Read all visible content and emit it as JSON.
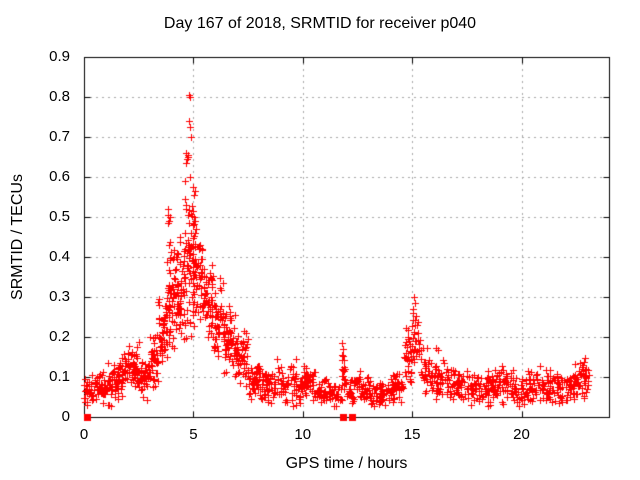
{
  "chart_data": {
    "type": "scatter",
    "title": "Day 167 of 2018, SRMTID for receiver p040",
    "xlabel": "GPS time / hours",
    "ylabel": "SRMTID / TECUs",
    "xlim": [
      0,
      24
    ],
    "ylim": [
      0,
      0.9
    ],
    "xticks": [
      {
        "value": 0,
        "label": "0"
      },
      {
        "value": 5,
        "label": "5"
      },
      {
        "value": 10,
        "label": "10"
      },
      {
        "value": 15,
        "label": "15"
      },
      {
        "value": 20,
        "label": "20"
      }
    ],
    "yticks": [
      {
        "value": 0.0,
        "label": "0"
      },
      {
        "value": 0.1,
        "label": "0.1"
      },
      {
        "value": 0.2,
        "label": "0.2"
      },
      {
        "value": 0.3,
        "label": "0.3"
      },
      {
        "value": 0.4,
        "label": "0.4"
      },
      {
        "value": 0.5,
        "label": "0.5"
      },
      {
        "value": 0.6,
        "label": "0.6"
      },
      {
        "value": 0.7,
        "label": "0.7"
      },
      {
        "value": 0.8,
        "label": "0.8"
      },
      {
        "value": 0.9,
        "label": "0.9"
      }
    ],
    "grid": true,
    "legend": "none",
    "marker": "plus",
    "marker_color": "#ff0000",
    "grid_color": "#a9a9a9",
    "axis_color": "#000000",
    "background_color": "#ffffff",
    "seed": 42,
    "density_bins": [
      {
        "x0": 0.0,
        "x1": 0.5,
        "ymin": 0.02,
        "ymax": 0.11,
        "n": 32
      },
      {
        "x0": 0.5,
        "x1": 1.0,
        "ymin": 0.03,
        "ymax": 0.12,
        "n": 36
      },
      {
        "x0": 1.0,
        "x1": 1.5,
        "ymin": 0.02,
        "ymax": 0.14,
        "n": 40
      },
      {
        "x0": 1.5,
        "x1": 2.0,
        "ymin": 0.04,
        "ymax": 0.17,
        "n": 40
      },
      {
        "x0": 2.0,
        "x1": 2.5,
        "ymin": 0.05,
        "ymax": 0.19,
        "n": 42
      },
      {
        "x0": 2.5,
        "x1": 3.0,
        "ymin": 0.04,
        "ymax": 0.16,
        "n": 40
      },
      {
        "x0": 3.0,
        "x1": 3.4,
        "ymin": 0.06,
        "ymax": 0.22,
        "n": 36
      },
      {
        "x0": 3.4,
        "x1": 3.8,
        "ymin": 0.1,
        "ymax": 0.33,
        "n": 46
      },
      {
        "x0": 3.8,
        "x1": 4.2,
        "ymin": 0.12,
        "ymax": 0.45,
        "n": 52
      },
      {
        "x0": 4.2,
        "x1": 4.6,
        "ymin": 0.15,
        "ymax": 0.47,
        "n": 52
      },
      {
        "x0": 4.6,
        "x1": 5.0,
        "ymin": 0.18,
        "ymax": 0.62,
        "n": 58
      },
      {
        "x0": 5.0,
        "x1": 5.4,
        "ymin": 0.2,
        "ymax": 0.52,
        "n": 52
      },
      {
        "x0": 5.4,
        "x1": 5.9,
        "ymin": 0.17,
        "ymax": 0.43,
        "n": 52
      },
      {
        "x0": 5.9,
        "x1": 6.4,
        "ymin": 0.13,
        "ymax": 0.36,
        "n": 48
      },
      {
        "x0": 6.4,
        "x1": 6.9,
        "ymin": 0.1,
        "ymax": 0.28,
        "n": 52
      },
      {
        "x0": 6.9,
        "x1": 7.5,
        "ymin": 0.07,
        "ymax": 0.22,
        "n": 52
      },
      {
        "x0": 7.5,
        "x1": 8.1,
        "ymin": 0.04,
        "ymax": 0.15,
        "n": 48
      },
      {
        "x0": 8.1,
        "x1": 9.0,
        "ymin": 0.02,
        "ymax": 0.13,
        "n": 52
      },
      {
        "x0": 9.0,
        "x1": 9.9,
        "ymin": 0.02,
        "ymax": 0.14,
        "n": 55
      },
      {
        "x0": 9.9,
        "x1": 10.6,
        "ymin": 0.04,
        "ymax": 0.13,
        "n": 45
      },
      {
        "x0": 10.6,
        "x1": 11.4,
        "ymin": 0.02,
        "ymax": 0.1,
        "n": 45
      },
      {
        "x0": 11.4,
        "x1": 11.8,
        "ymin": 0.02,
        "ymax": 0.09,
        "n": 22
      },
      {
        "x0": 11.75,
        "x1": 11.95,
        "ymin": 0.05,
        "ymax": 0.18,
        "n": 14
      },
      {
        "x0": 11.95,
        "x1": 12.4,
        "ymin": 0.03,
        "ymax": 0.11,
        "n": 24
      },
      {
        "x0": 12.4,
        "x1": 13.1,
        "ymin": 0.03,
        "ymax": 0.12,
        "n": 42
      },
      {
        "x0": 13.1,
        "x1": 13.9,
        "ymin": 0.02,
        "ymax": 0.09,
        "n": 45
      },
      {
        "x0": 13.9,
        "x1": 14.6,
        "ymin": 0.03,
        "ymax": 0.12,
        "n": 45
      },
      {
        "x0": 14.6,
        "x1": 15.0,
        "ymin": 0.05,
        "ymax": 0.24,
        "n": 30
      },
      {
        "x0": 15.0,
        "x1": 15.35,
        "ymin": 0.08,
        "ymax": 0.29,
        "n": 26
      },
      {
        "x0": 15.35,
        "x1": 15.9,
        "ymin": 0.05,
        "ymax": 0.18,
        "n": 34
      },
      {
        "x0": 15.9,
        "x1": 16.6,
        "ymin": 0.04,
        "ymax": 0.15,
        "n": 42
      },
      {
        "x0": 16.6,
        "x1": 17.6,
        "ymin": 0.03,
        "ymax": 0.13,
        "n": 56
      },
      {
        "x0": 17.6,
        "x1": 18.6,
        "ymin": 0.02,
        "ymax": 0.12,
        "n": 56
      },
      {
        "x0": 18.6,
        "x1": 19.6,
        "ymin": 0.03,
        "ymax": 0.13,
        "n": 56
      },
      {
        "x0": 19.6,
        "x1": 20.6,
        "ymin": 0.02,
        "ymax": 0.12,
        "n": 56
      },
      {
        "x0": 20.6,
        "x1": 21.6,
        "ymin": 0.03,
        "ymax": 0.13,
        "n": 56
      },
      {
        "x0": 21.6,
        "x1": 22.4,
        "ymin": 0.02,
        "ymax": 0.11,
        "n": 48
      },
      {
        "x0": 22.4,
        "x1": 23.1,
        "ymin": 0.04,
        "ymax": 0.15,
        "n": 48
      }
    ],
    "outlier_points": [
      [
        3.82,
        0.52
      ],
      [
        3.86,
        0.505
      ],
      [
        3.9,
        0.49
      ],
      [
        3.84,
        0.485
      ],
      [
        3.92,
        0.5
      ],
      [
        4.78,
        0.805
      ],
      [
        4.84,
        0.8
      ],
      [
        4.8,
        0.74
      ],
      [
        4.83,
        0.725
      ],
      [
        4.87,
        0.7
      ],
      [
        4.68,
        0.66
      ],
      [
        4.74,
        0.655
      ],
      [
        4.71,
        0.645
      ],
      [
        4.77,
        0.65
      ],
      [
        4.66,
        0.635
      ],
      [
        4.86,
        0.6
      ],
      [
        4.61,
        0.59
      ],
      [
        4.96,
        0.575
      ],
      [
        5.06,
        0.565
      ],
      [
        5.01,
        0.555
      ],
      [
        4.63,
        0.545
      ],
      [
        5.03,
        0.5
      ],
      [
        5.09,
        0.49
      ],
      [
        5.11,
        0.47
      ],
      [
        5.06,
        0.46
      ],
      [
        7.3,
        0.215
      ],
      [
        8.8,
        0.145
      ],
      [
        9.7,
        0.145
      ],
      [
        11.78,
        0.185
      ],
      [
        11.82,
        0.17
      ],
      [
        11.8,
        0.155
      ],
      [
        15.08,
        0.3
      ],
      [
        15.12,
        0.285
      ],
      [
        15.05,
        0.27
      ],
      [
        16.1,
        0.172
      ],
      [
        16.16,
        0.168
      ],
      [
        22.9,
        0.148
      ],
      [
        22.84,
        0.138
      ]
    ],
    "zero_value_clusters": [
      0.14,
      11.83,
      12.26
    ]
  }
}
